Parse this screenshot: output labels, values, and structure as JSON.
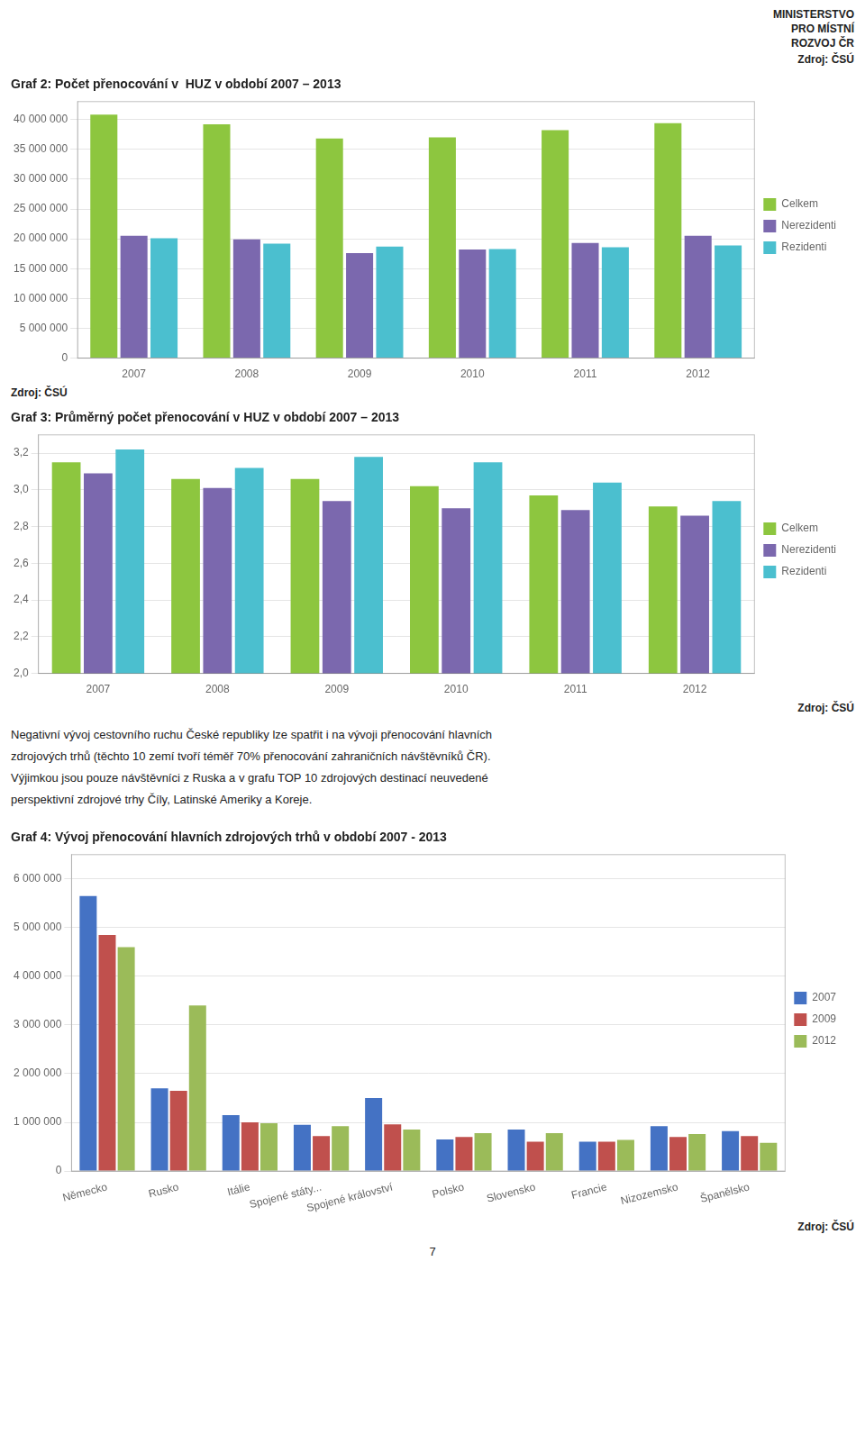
{
  "header": [
    "MINISTERSTVO",
    "PRO MÍSTNÍ",
    "ROZVOJ ČR"
  ],
  "source": "Zdroj: ČSÚ",
  "body": [
    "Negativní vývoj cestovního ruchu České republiky lze spatřit i na vývoji přenocování hlavních",
    "zdrojových trhů (těchto 10 zemí tvoří téměř 70% přenocování zahraničních návštěvníků ČR).",
    "Výjimkou jsou pouze návštěvníci z Ruska a v grafu TOP 10 zdrojových destinací neuvedené",
    "perspektivní zdrojové trhy Číly, Latinské Ameriky a Koreje."
  ],
  "page_number": "7",
  "chart_data": [
    {
      "type": "bar",
      "title": "Graf 2: Počet přenocování v  HUZ v období 2007 – 2013",
      "categories": [
        "2007",
        "2008",
        "2009",
        "2010",
        "2011",
        "2012"
      ],
      "series": [
        {
          "name": "Celkem",
          "color": "#8DC63F",
          "values": [
            40800000,
            39200000,
            36800000,
            37000000,
            38200000,
            39400000
          ]
        },
        {
          "name": "Nerezidenti",
          "color": "#7B68AE",
          "values": [
            20500000,
            19900000,
            17600000,
            18200000,
            19300000,
            20500000
          ]
        },
        {
          "name": "Rezidenti",
          "color": "#4BBFCF",
          "values": [
            20100000,
            19200000,
            18700000,
            18300000,
            18600000,
            18900000
          ]
        }
      ],
      "ylim": [
        0,
        43000000
      ],
      "yticks": [
        0,
        {
          "value": 5000000,
          "label": "5 000 000"
        },
        {
          "value": 10000000,
          "label": "10 000 000"
        },
        {
          "value": 15000000,
          "label": "15 000 000"
        },
        {
          "value": 20000000,
          "label": "20 000 000"
        },
        {
          "value": 25000000,
          "label": "25 000 000"
        },
        {
          "value": 30000000,
          "label": "30 000 000"
        },
        {
          "value": 35000000,
          "label": "35 000 000"
        },
        {
          "value": 40000000,
          "label": "40 000 000"
        }
      ],
      "grid": true,
      "legend": "right"
    },
    {
      "type": "bar",
      "title": "Graf 3: Průměrný počet přenocování v HUZ v období 2007 – 2013",
      "categories": [
        "2007",
        "2008",
        "2009",
        "2010",
        "2011",
        "2012"
      ],
      "series": [
        {
          "name": "Celkem",
          "color": "#8DC63F",
          "values": [
            3.15,
            3.06,
            3.06,
            3.02,
            2.97,
            2.91
          ]
        },
        {
          "name": "Nerezidenti",
          "color": "#7B68AE",
          "values": [
            3.09,
            3.01,
            2.94,
            2.9,
            2.89,
            2.86
          ]
        },
        {
          "name": "Rezidenti",
          "color": "#4BBFCF",
          "values": [
            3.22,
            3.12,
            3.18,
            3.15,
            3.04,
            2.94
          ]
        }
      ],
      "ylim": [
        2.0,
        3.3
      ],
      "yticks": [
        {
          "value": 2.0,
          "label": "2,0"
        },
        {
          "value": 2.2,
          "label": "2,2"
        },
        {
          "value": 2.4,
          "label": "2,4"
        },
        {
          "value": 2.6,
          "label": "2,6"
        },
        {
          "value": 2.8,
          "label": "2,8"
        },
        {
          "value": 3.0,
          "label": "3,0"
        },
        {
          "value": 3.2,
          "label": "3,2"
        }
      ],
      "grid": true,
      "legend": "right"
    },
    {
      "type": "bar",
      "title": "Graf 4: Vývoj přenocování hlavních zdrojových trhů v období 2007 - 2013",
      "categories": [
        "Německo",
        "Rusko",
        "Itálie",
        "Spojené státy...",
        "Spojené království",
        "Polsko",
        "Slovensko",
        "Francie",
        "Nizozemsko",
        "Španělsko"
      ],
      "series": [
        {
          "name": "2007",
          "color": "#4472C4",
          "values": [
            5650000,
            1700000,
            1150000,
            950000,
            1500000,
            650000,
            850000,
            600000,
            920000,
            820000
          ]
        },
        {
          "name": "2009",
          "color": "#C0504D",
          "values": [
            4850000,
            1650000,
            1000000,
            720000,
            960000,
            700000,
            600000,
            600000,
            700000,
            720000
          ]
        },
        {
          "name": "2012",
          "color": "#9BBB59",
          "values": [
            4600000,
            3400000,
            980000,
            920000,
            850000,
            780000,
            780000,
            640000,
            760000,
            580000
          ]
        }
      ],
      "ylim": [
        0,
        6500000
      ],
      "yticks": [
        0,
        {
          "value": 1000000,
          "label": "1 000 000"
        },
        {
          "value": 2000000,
          "label": "2 000 000"
        },
        {
          "value": 3000000,
          "label": "3 000 000"
        },
        {
          "value": 4000000,
          "label": "4 000 000"
        },
        {
          "value": 5000000,
          "label": "5 000 000"
        },
        {
          "value": 6000000,
          "label": "6 000 000"
        }
      ],
      "grid": true,
      "legend": "right"
    }
  ]
}
